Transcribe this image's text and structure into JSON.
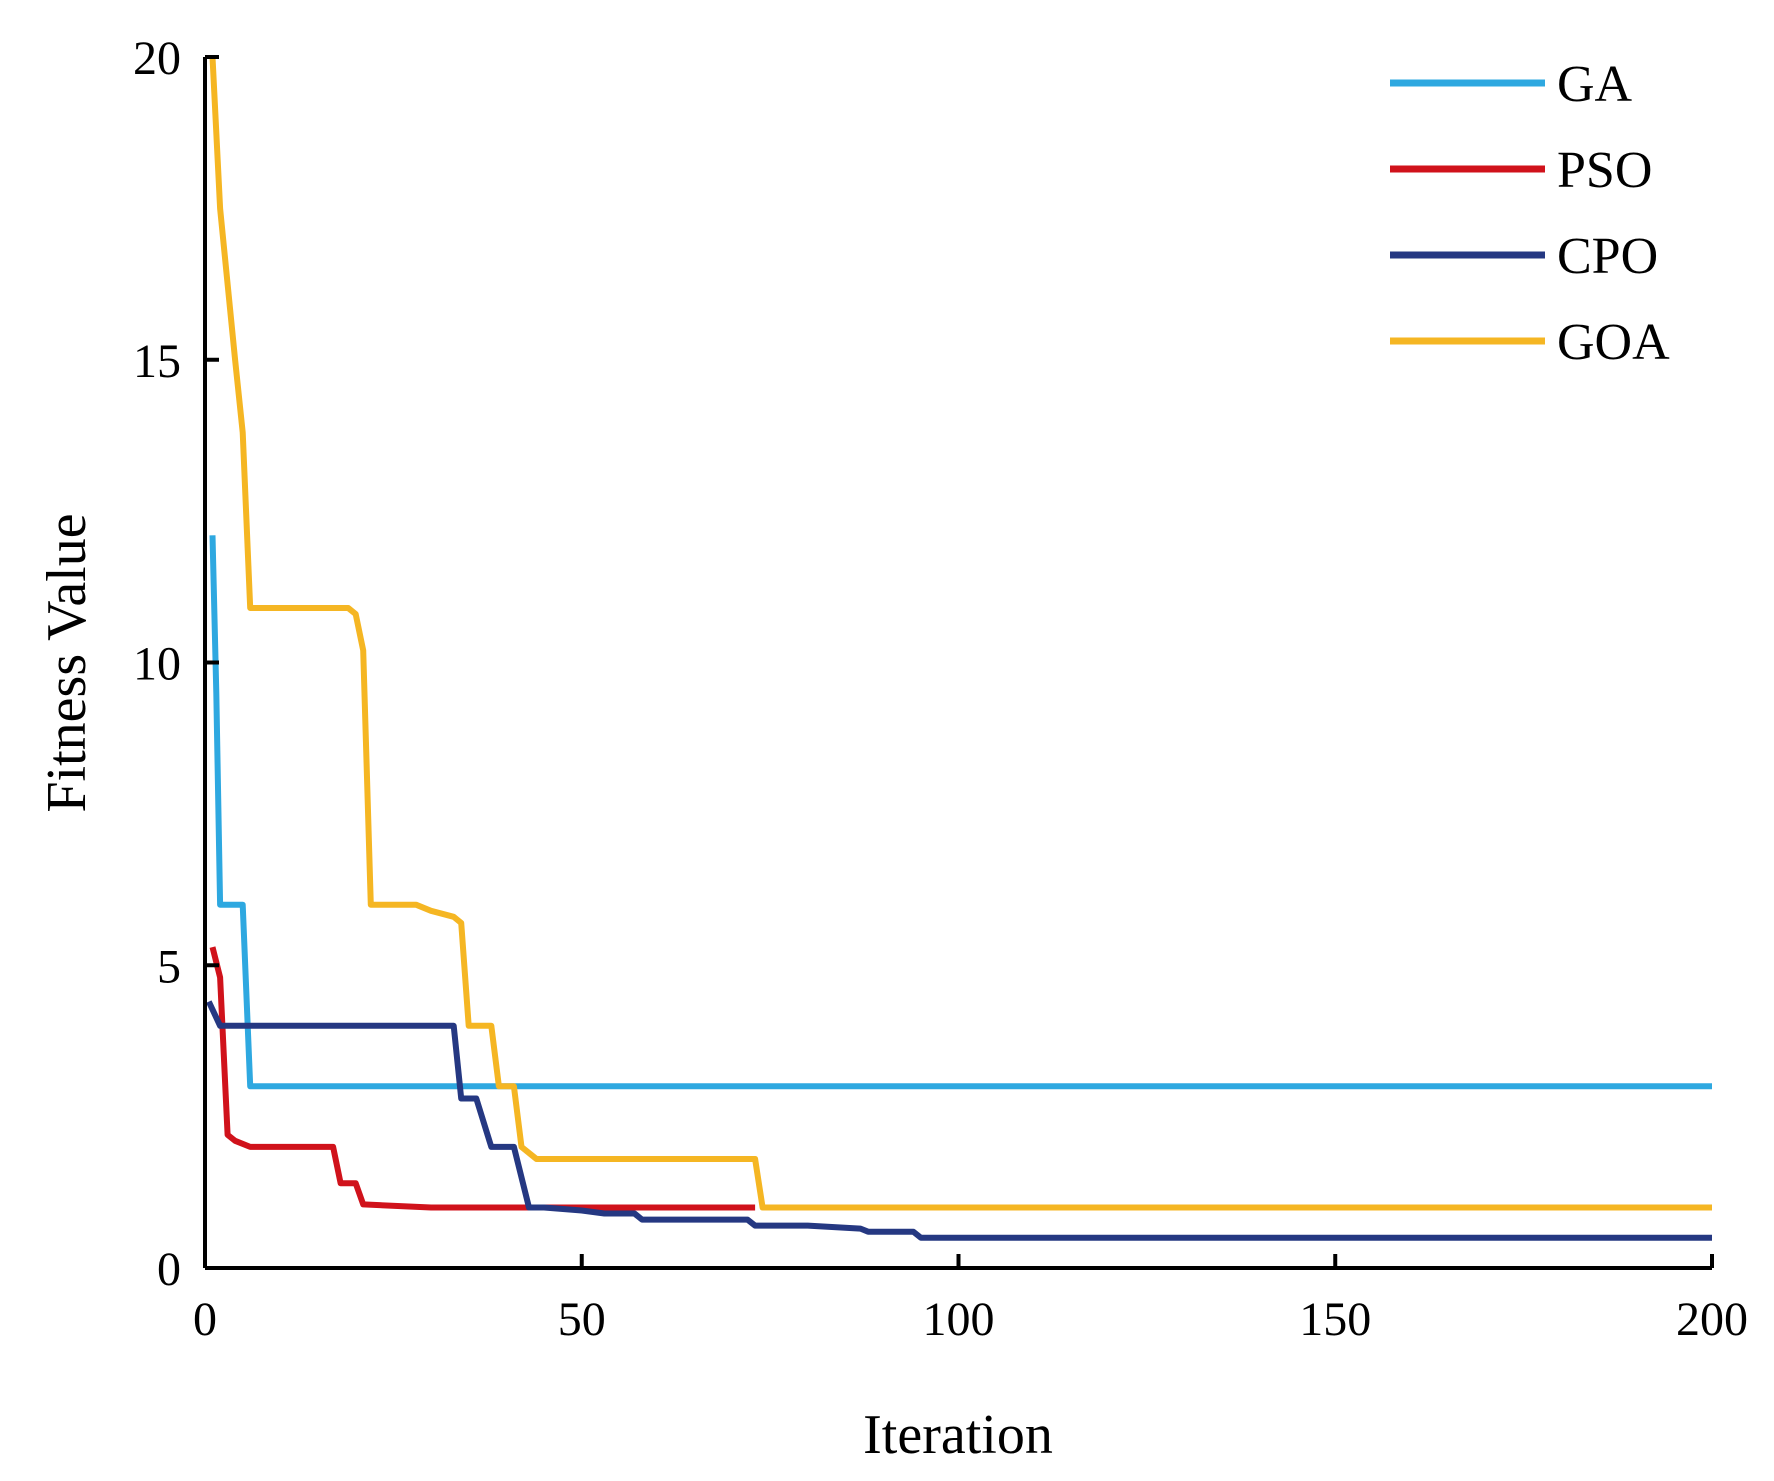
{
  "chart_data": {
    "type": "line",
    "title": "",
    "xlabel": "Iteration",
    "ylabel": "Fitness Value",
    "xlim": [
      0,
      200
    ],
    "ylim": [
      0,
      20
    ],
    "xticks": [
      0,
      50,
      100,
      150,
      200
    ],
    "yticks": [
      0,
      5,
      10,
      15,
      20
    ],
    "grid": false,
    "legend_position": "top-right",
    "series": [
      {
        "name": "GA",
        "color": "#2EA8E0",
        "points": [
          [
            1,
            12.1
          ],
          [
            1.5,
            9.5
          ],
          [
            2,
            6
          ],
          [
            5,
            6
          ],
          [
            6,
            3
          ],
          [
            200,
            3
          ]
        ]
      },
      {
        "name": "PSO",
        "color": "#D0121B",
        "points": [
          [
            1,
            5.3
          ],
          [
            2,
            4.8
          ],
          [
            3,
            2.2
          ],
          [
            4,
            2.1
          ],
          [
            6,
            2
          ],
          [
            17,
            2
          ],
          [
            18,
            1.4
          ],
          [
            20,
            1.4
          ],
          [
            21,
            1.05
          ],
          [
            30,
            1
          ],
          [
            73,
            1
          ]
        ]
      },
      {
        "name": "CPO",
        "color": "#253882",
        "points": [
          [
            0.5,
            4.4
          ],
          [
            2,
            4
          ],
          [
            33,
            4
          ],
          [
            34,
            2.8
          ],
          [
            36,
            2.8
          ],
          [
            38,
            2
          ],
          [
            41,
            2
          ],
          [
            43,
            1
          ],
          [
            45,
            1
          ],
          [
            50,
            0.95
          ],
          [
            53,
            0.9
          ],
          [
            57,
            0.9
          ],
          [
            58,
            0.8
          ],
          [
            65,
            0.8
          ],
          [
            72,
            0.8
          ],
          [
            73,
            0.7
          ],
          [
            80,
            0.7
          ],
          [
            87,
            0.65
          ],
          [
            88,
            0.6
          ],
          [
            94,
            0.6
          ],
          [
            95,
            0.5
          ],
          [
            200,
            0.5
          ]
        ]
      },
      {
        "name": "GOA",
        "color": "#F5B623",
        "points": [
          [
            1,
            20
          ],
          [
            2,
            17.5
          ],
          [
            4,
            15
          ],
          [
            5,
            13.8
          ],
          [
            6,
            10.9
          ],
          [
            19,
            10.9
          ],
          [
            20,
            10.8
          ],
          [
            21,
            10.2
          ],
          [
            22,
            6
          ],
          [
            28,
            6
          ],
          [
            30,
            5.9
          ],
          [
            33,
            5.8
          ],
          [
            34,
            5.7
          ],
          [
            35,
            4
          ],
          [
            38,
            4
          ],
          [
            39,
            3
          ],
          [
            41,
            3
          ],
          [
            42,
            2
          ],
          [
            44,
            1.8
          ],
          [
            73,
            1.8
          ],
          [
            74,
            1
          ],
          [
            200,
            1
          ]
        ]
      }
    ]
  }
}
